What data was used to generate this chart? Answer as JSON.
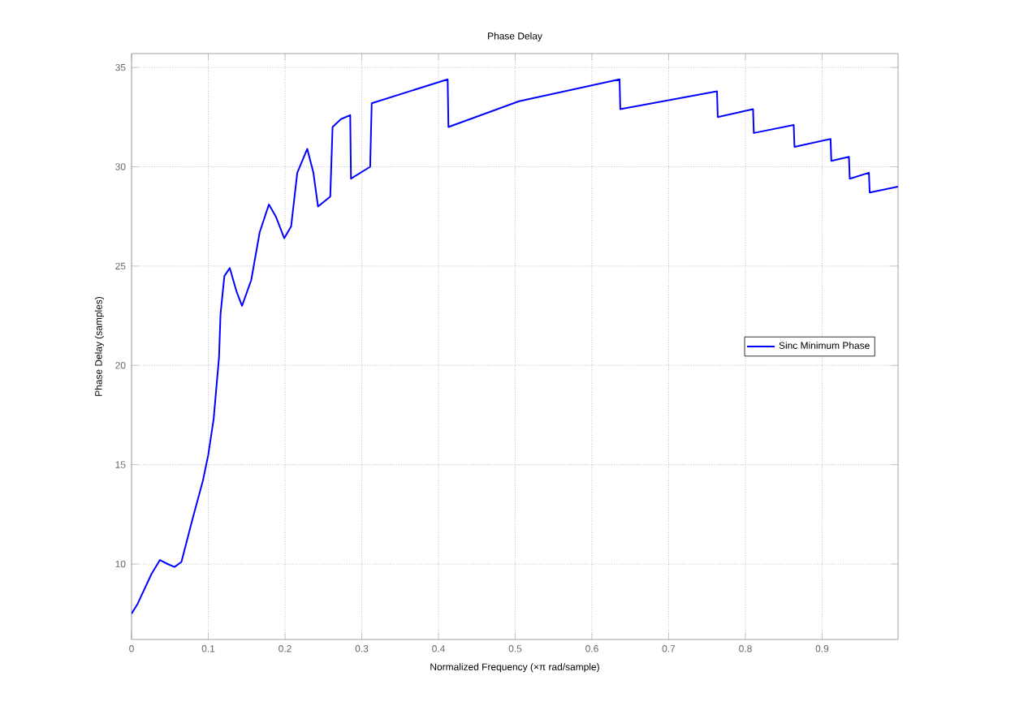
{
  "chart_data": {
    "type": "line",
    "title": "Phase Delay",
    "xlabel": "Normalized Frequency (×π rad/sample)",
    "ylabel": "Phase Delay (samples)",
    "xlim": [
      0,
      0.999
    ],
    "ylim": [
      6.2,
      35.7
    ],
    "xticks": [
      0,
      0.1,
      0.2,
      0.3,
      0.4,
      0.5,
      0.6,
      0.7,
      0.8,
      0.9
    ],
    "yticks": [
      10,
      15,
      20,
      25,
      30,
      35
    ],
    "grid": true,
    "legend": "right",
    "marker": "none",
    "line_style": "solid",
    "series": [
      {
        "name": "Sinc Minimum Phase",
        "color": "#0000ff",
        "x": [
          0,
          0.008,
          0.026,
          0.037,
          0.047,
          0.056,
          0.065,
          0.079,
          0.093,
          0.1,
          0.107,
          0.114,
          0.116,
          0.121,
          0.128,
          0.137,
          0.144,
          0.156,
          0.167,
          0.179,
          0.188,
          0.199,
          0.208,
          0.216,
          0.229,
          0.237,
          0.243,
          0.259,
          0.262,
          0.273,
          0.285,
          0.286,
          0.311,
          0.313,
          0.412,
          0.413,
          0.505,
          0.636,
          0.637,
          0.763,
          0.764,
          0.81,
          0.811,
          0.863,
          0.864,
          0.911,
          0.912,
          0.935,
          0.936,
          0.961,
          0.962,
          0.999
        ],
        "values": [
          7.5,
          8.0,
          9.5,
          10.2,
          10.0,
          9.85,
          10.1,
          12.2,
          14.2,
          15.5,
          17.3,
          20.4,
          22.6,
          24.5,
          24.9,
          23.7,
          23.0,
          24.3,
          26.7,
          28.1,
          27.5,
          26.4,
          27.0,
          29.7,
          30.9,
          29.7,
          28.0,
          28.5,
          32.0,
          32.4,
          32.6,
          29.4,
          30.0,
          33.2,
          34.4,
          32.0,
          33.3,
          34.4,
          32.9,
          33.8,
          32.5,
          32.9,
          31.7,
          32.1,
          31.0,
          31.4,
          30.3,
          30.5,
          29.4,
          29.7,
          28.7,
          29.0
        ]
      }
    ]
  }
}
